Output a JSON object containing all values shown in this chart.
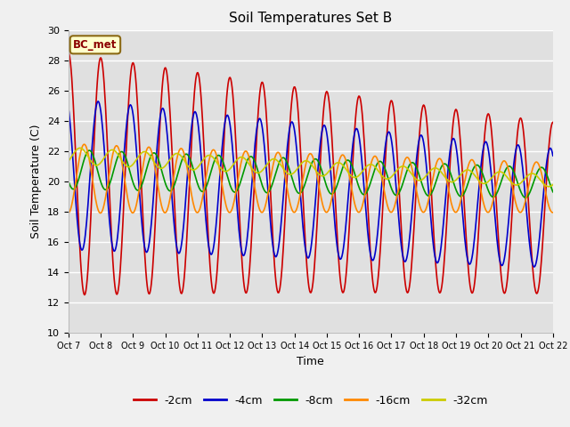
{
  "title": "Soil Temperatures Set B",
  "xlabel": "Time",
  "ylabel": "Soil Temperature (C)",
  "ylim": [
    10,
    30
  ],
  "xlim": [
    0,
    15
  ],
  "fig_facecolor": "#f0f0f0",
  "plot_facecolor": "#e0e0e0",
  "annotation_text": "BC_met",
  "annotation_bg": "#ffffcc",
  "annotation_border": "#8b6914",
  "annotation_color": "#8b0000",
  "colors": {
    "-2cm": "#cc0000",
    "-4cm": "#0000cc",
    "-8cm": "#009900",
    "-16cm": "#ff8800",
    "-32cm": "#cccc00"
  },
  "xtick_labels": [
    "Oct 7",
    "Oct 8",
    "Oct 9",
    "Oct 10",
    "Oct 11",
    "Oct 12",
    "Oct 13",
    "Oct 14",
    "Oct 15",
    "Oct 16",
    "Oct 17",
    "Oct 18",
    "Oct 19",
    "Oct 20",
    "Oct 21",
    "Oct 22"
  ],
  "ytick_vals": [
    10,
    12,
    14,
    16,
    18,
    20,
    22,
    24,
    26,
    28,
    30
  ],
  "lw": 1.2
}
